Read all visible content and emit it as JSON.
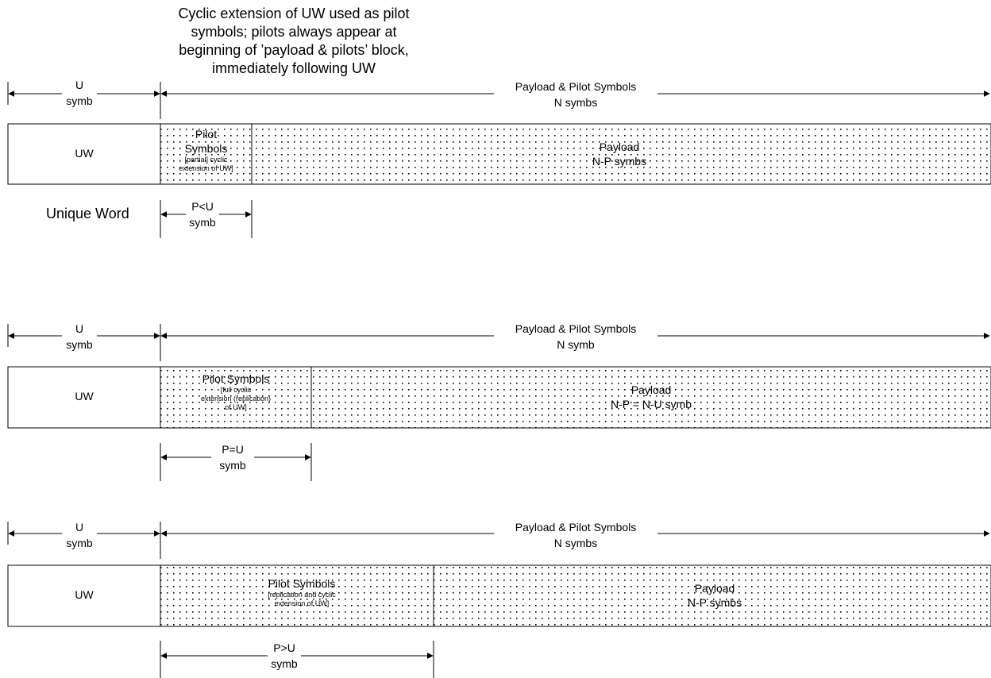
{
  "annotation": {
    "lines": [
      "Cyclic extension of UW used as pilot",
      "symbols; pilots always appear at",
      "beginning of  ’payload & pilots’ block,",
      "immediately following UW"
    ]
  },
  "legend": {
    "unique_word": "Unique Word"
  },
  "rows": [
    {
      "u_dim": [
        "U",
        "symb"
      ],
      "payload_dim": [
        "Payload & Pilot Symbols",
        "N symbs"
      ],
      "uw_label": "UW",
      "pilot_label": [
        "Pilot",
        "Symbols"
      ],
      "pilot_note": [
        "[partial] cyclic",
        "extension of UW]"
      ],
      "payload_label": [
        "Payload",
        "N-P symbs"
      ],
      "p_dim": [
        "P<U",
        "symb"
      ]
    },
    {
      "u_dim": [
        "U",
        "symb"
      ],
      "payload_dim": [
        "Payload & Pilot Symbols",
        "N symb"
      ],
      "uw_label": "UW",
      "pilot_label": [
        "Pilot Symbols"
      ],
      "pilot_note": [
        "[full cyclic",
        "extension (replication)",
        "of UW]"
      ],
      "payload_label": [
        "Payload",
        "N-P = N-U symb"
      ],
      "p_dim": [
        "P=U",
        "symb"
      ]
    },
    {
      "u_dim": [
        "U",
        "symb"
      ],
      "payload_dim": [
        "Payload & Pilot Symbols",
        "N symbs"
      ],
      "uw_label": "UW",
      "pilot_label": [
        "Pilot Symbols"
      ],
      "pilot_note": [
        "[replication and cyclic",
        "extension of UW]"
      ],
      "payload_label": [
        "Payload",
        "N-P symbs"
      ],
      "p_dim": [
        "P>U",
        "symb"
      ]
    }
  ]
}
